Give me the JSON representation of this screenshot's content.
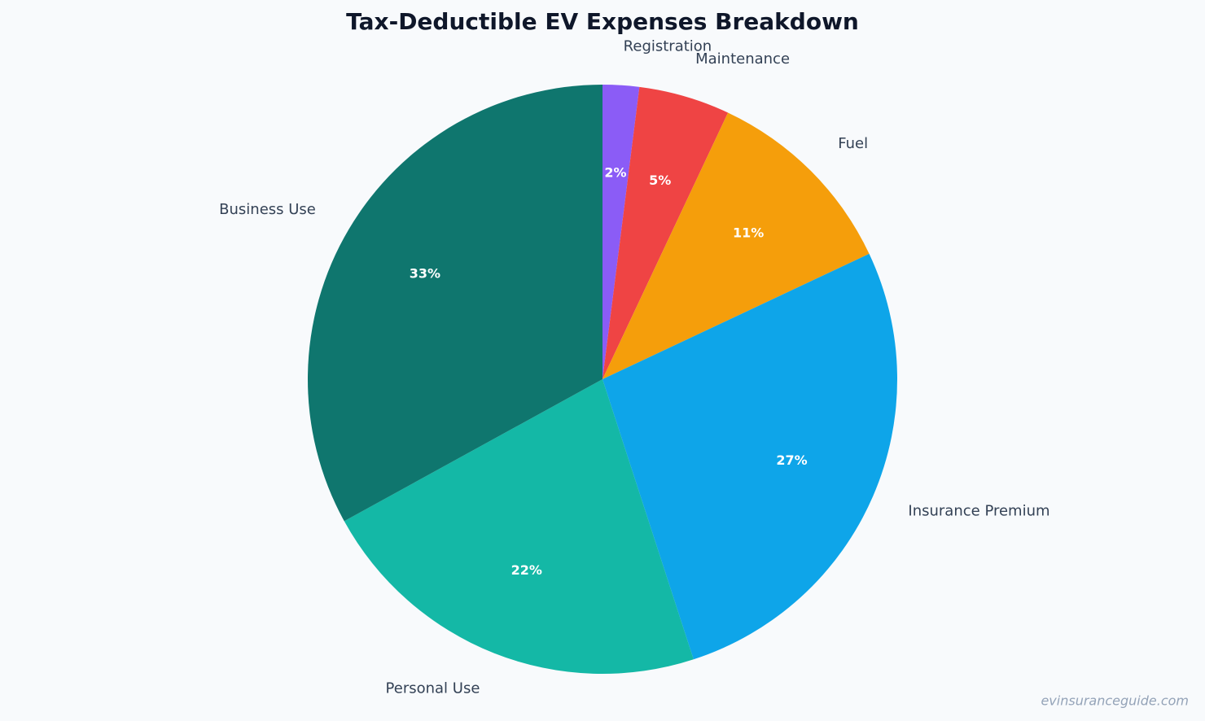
{
  "chart_data": {
    "type": "pie",
    "title": "Tax-Deductible EV Expenses Breakdown",
    "categories": [
      "Registration",
      "Maintenance",
      "Fuel",
      "Insurance Premium",
      "Personal Use",
      "Business Use"
    ],
    "values": [
      2,
      5,
      11,
      27,
      22,
      33
    ],
    "value_labels": [
      "2%",
      "5%",
      "11%",
      "27%",
      "22%",
      "33%"
    ],
    "colors": [
      "#8b5cf6",
      "#ef4444",
      "#f59e0b",
      "#0ea5e9",
      "#14b8a6",
      "#0f766e"
    ],
    "source": "evinsuranceguide.com"
  }
}
